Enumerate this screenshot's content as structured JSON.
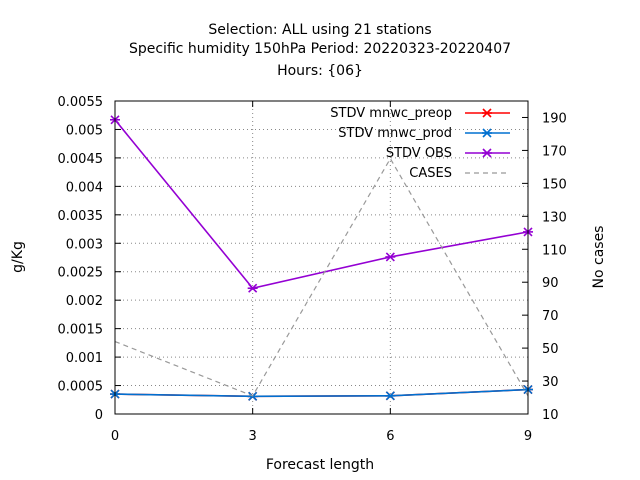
{
  "chart_data": {
    "type": "line",
    "title_lines": [
      "Selection: ALL using    21 stations",
      "Specific humidity 150hPa   Period: 20220323-20220407",
      "Hours: {06}"
    ],
    "xlabel": "Forecast length",
    "ylabel": "g/Kg",
    "y2label": "No cases",
    "x": [
      0,
      3,
      6,
      9
    ],
    "xlim": [
      0,
      9
    ],
    "ylim": [
      0,
      0.0055
    ],
    "y2lim": [
      10,
      200
    ],
    "x_ticks": [
      "0",
      "3",
      "6",
      "9"
    ],
    "y_ticks": [
      "0",
      "0.0005",
      "0.001",
      "0.0015",
      "0.002",
      "0.0025",
      "0.003",
      "0.0035",
      "0.004",
      "0.0045",
      "0.005",
      "0.0055"
    ],
    "y2_ticks": [
      "10",
      "30",
      "50",
      "70",
      "90",
      "110",
      "130",
      "150",
      "170",
      "190"
    ],
    "grid": true,
    "legend_position": "top-right",
    "series": [
      {
        "name": "STDV mnwc_preop",
        "axis": "y",
        "color": "#ff0000",
        "marker": "x",
        "dash": "solid",
        "values": [
          0.00035,
          0.00031,
          0.00032,
          0.00043
        ]
      },
      {
        "name": "STDV mnwc_prod",
        "axis": "y",
        "color": "#0070d0",
        "marker": "x",
        "dash": "solid",
        "values": [
          0.00035,
          0.00031,
          0.00032,
          0.00043
        ]
      },
      {
        "name": "STDV OBS",
        "axis": "y",
        "color": "#9400d3",
        "marker": "x",
        "dash": "solid",
        "values": [
          0.00517,
          0.00221,
          0.00276,
          0.0032
        ]
      },
      {
        "name": "CASES",
        "axis": "y2",
        "color": "#999999",
        "marker": "none",
        "dash": "dashed",
        "values": [
          54,
          21,
          165,
          21
        ]
      }
    ]
  }
}
